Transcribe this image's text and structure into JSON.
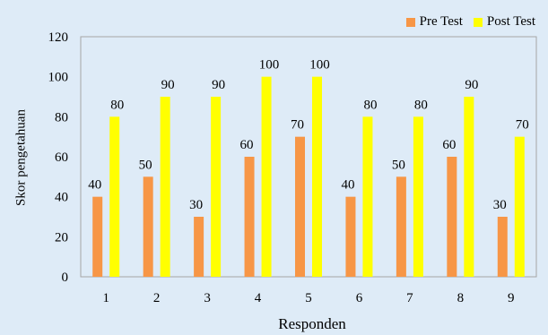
{
  "chart_data": {
    "type": "bar",
    "categories": [
      "1",
      "2",
      "3",
      "4",
      "5",
      "6",
      "7",
      "8",
      "9"
    ],
    "series": [
      {
        "name": "Pre Test",
        "values": [
          40,
          50,
          30,
          60,
          70,
          40,
          50,
          60,
          30
        ],
        "color": "#f79646"
      },
      {
        "name": "Post Test",
        "values": [
          80,
          90,
          90,
          100,
          100,
          80,
          80,
          90,
          70
        ],
        "color": "#ffff00"
      }
    ],
    "title": "",
    "xlabel": "Responden",
    "ylabel": "Skor pengetahuan",
    "ylim": [
      0,
      120
    ],
    "yticks": [
      0,
      20,
      40,
      60,
      80,
      100,
      120
    ],
    "grid": false,
    "data_labels": true,
    "legend_position": "top-right",
    "colors": {
      "chart_background": "#deebf7",
      "plot_background": "#deebf7",
      "axis": "#a6a6a6"
    }
  }
}
